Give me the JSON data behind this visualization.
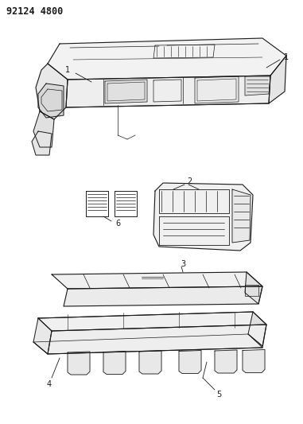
{
  "title": "92124 4800",
  "bg_color": "#ffffff",
  "title_fontsize": 8.5,
  "figsize": [
    3.81,
    5.33
  ],
  "dpi": 100,
  "label_fontsize": 7,
  "line_color": "#1a1a1a",
  "lw": 0.7
}
